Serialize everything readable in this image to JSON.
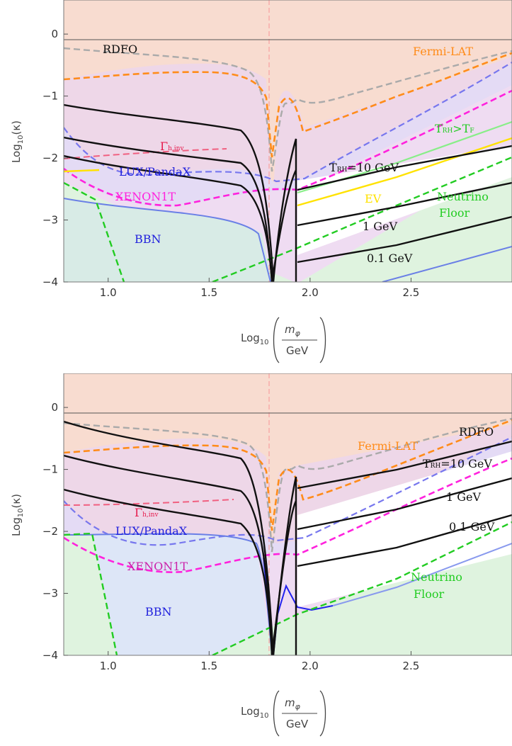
{
  "figure": {
    "xlabel": {
      "prefix": "Log",
      "sub": "10",
      "numer": "m",
      "numer_sub": "φ",
      "denom": "GeV"
    },
    "ylabel": {
      "prefix": "Log",
      "sub": "10",
      "arg": "(κ)"
    }
  },
  "chart_data": [
    {
      "type": "line",
      "panel": "top",
      "xlim": [
        0.78,
        3.0
      ],
      "ylim": [
        -4,
        0.55
      ],
      "x_ticks": [
        1.0,
        1.5,
        2.0,
        2.5
      ],
      "x_tick_labels": [
        "1.0",
        "1.5",
        "2.0",
        "2.5"
      ],
      "y_ticks": [
        0,
        -1,
        -2,
        -3,
        -4
      ],
      "y_tick_labels": [
        "0",
        "−1",
        "−2",
        "−3",
        "−4"
      ],
      "annotations": {
        "rdfo": "RDFO",
        "fermi": "Fermi-LAT",
        "gamma": "Γ",
        "gamma_sub": "h,inv",
        "lux": "LUX/PandaX",
        "xenon": "XENON1T",
        "bbn": "BBN",
        "trh10": "T",
        "trh10_sub": "RH",
        "trh10_rest": "=10 GeV",
        "gev1": "1 GeV",
        "gev01": "0.1 GeV",
        "ev": "EV",
        "trhtf": "T",
        "trhtf_sub": "RH",
        "trhtf_mid": ">T",
        "trhtf_sub2": "F",
        "neutrino1": "Neutrino",
        "neutrino2": "Floor"
      }
    },
    {
      "type": "line",
      "panel": "bottom",
      "xlim": [
        0.78,
        3.0
      ],
      "ylim": [
        -4,
        0.55
      ],
      "x_ticks": [
        1.0,
        1.5,
        2.0,
        2.5
      ],
      "x_tick_labels": [
        "1.0",
        "1.5",
        "2.0",
        "2.5"
      ],
      "y_ticks": [
        0,
        -1,
        -2,
        -3,
        -4
      ],
      "y_tick_labels": [
        "0",
        "−1",
        "−2",
        "−3",
        "−4"
      ],
      "annotations": {
        "rdfo": "RDFO",
        "fermi": "Fermi-LAT",
        "gamma": "Γ",
        "gamma_sub": "h,inv",
        "lux": "LUX/PandaX",
        "xenon": "XENON1T",
        "bbn": "BBN",
        "trh10": "T",
        "trh10_sub": "RH",
        "trh10_rest": "=10 GeV",
        "gev1": "1 GeV",
        "gev01": "0.1 GeV",
        "neutrino1": "Neutrino",
        "neutrino2": "Floor"
      }
    }
  ],
  "colors": {
    "rdfo_region": "#f8dcd0",
    "fermi": "#ff8c1a",
    "lux": "#7777ee",
    "xenon": "#ff22dd",
    "gamma": "#e6194b",
    "bbn": "#2222dd",
    "neutrino": "#22cc22",
    "ev": "#ffe200",
    "trhtf": "#66ee66",
    "rdfo_line": "#aaaaaa",
    "black": "#111111"
  }
}
